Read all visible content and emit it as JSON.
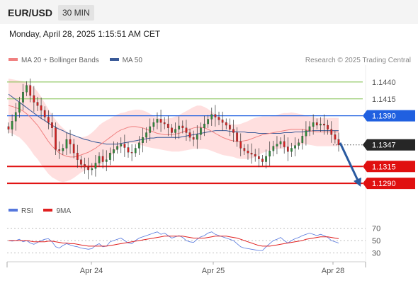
{
  "header": {
    "symbol": "EUR/USD",
    "timeframe": "30 MIN",
    "datetime": "Monday, April 28, 2025 1:15:51 AM CET"
  },
  "legend": {
    "bollinger": "MA 20 + Bollinger Bands",
    "ma50": "MA 50",
    "credit": "Research © 2025 Trading Central"
  },
  "indicator_legend": {
    "rsi": "RSI",
    "ma9": "9MA"
  },
  "colors": {
    "green_level": "#7fbf4a",
    "pivot_blue": "#2060e0",
    "support_red": "#e01010",
    "ma20": "#f08080",
    "band_fill": "#ffd4d4",
    "ma50": "#3a5a98",
    "candle_up": "#2e8b3a",
    "candle_down": "#d42020",
    "rsi": "#5577dd",
    "rsi_ma": "#e02020",
    "arrow": "#2a5aa0"
  },
  "chart_data": {
    "type": "candlestick",
    "title": "EUR/USD",
    "timeframe": "30 MIN",
    "ylim": [
      1.1265,
      1.1465
    ],
    "x_labels": [
      "Apr 24",
      "Apr 25",
      "Apr 28"
    ],
    "levels": [
      {
        "value": 1.144,
        "label": "1.1440",
        "kind": "resistance"
      },
      {
        "value": 1.1415,
        "label": "1.1415",
        "kind": "resistance"
      },
      {
        "value": 1.139,
        "label": "1.1390",
        "kind": "pivot"
      },
      {
        "value": 1.1347,
        "label": "1.1347",
        "kind": "last"
      },
      {
        "value": 1.1315,
        "label": "1.1315",
        "kind": "support"
      },
      {
        "value": 1.129,
        "label": "1.1290",
        "kind": "support"
      }
    ],
    "forecast_arrow": {
      "from": 1.135,
      "to": 1.1285
    },
    "price_path": [
      1.137,
      1.1382,
      1.1395,
      1.141,
      1.1425,
      1.1435,
      1.142,
      1.141,
      1.1405,
      1.1398,
      1.1388,
      1.138,
      1.1372,
      1.134,
      1.1338,
      1.1342,
      1.1355,
      1.1348,
      1.1335,
      1.1325,
      1.1318,
      1.1314,
      1.131,
      1.1312,
      1.132,
      1.133,
      1.1322,
      1.1325,
      1.1335,
      1.134,
      1.1345,
      1.1348,
      1.1343,
      1.1336,
      1.1335,
      1.1342,
      1.135,
      1.1358,
      1.1365,
      1.1374,
      1.138,
      1.1385,
      1.138,
      1.1378,
      1.1372,
      1.1365,
      1.137,
      1.1375,
      1.1372,
      1.1365,
      1.1358,
      1.1355,
      1.1362,
      1.1372,
      1.1378,
      1.1385,
      1.1392,
      1.1388,
      1.1384,
      1.138,
      1.1376,
      1.137,
      1.1365,
      1.1352,
      1.1342,
      1.1338,
      1.1335,
      1.1333,
      1.133,
      1.1326,
      1.1322,
      1.133,
      1.1338,
      1.1345,
      1.1348,
      1.1352,
      1.1344,
      1.1337,
      1.1342,
      1.1346,
      1.135,
      1.136,
      1.1368,
      1.1374,
      1.138,
      1.1376,
      1.1378,
      1.1376,
      1.137,
      1.1362,
      1.1355,
      1.1347
    ],
    "ma20": [
      1.1405,
      1.1404,
      1.1402,
      1.14,
      1.1397,
      1.1393,
      1.1388,
      1.1382,
      1.1376,
      1.1368,
      1.136,
      1.1352,
      1.1345,
      1.134,
      1.1335,
      1.1332,
      1.133,
      1.1329,
      1.1329,
      1.133,
      1.1332,
      1.1334,
      1.1336,
      1.1339,
      1.1342,
      1.1346,
      1.135,
      1.1354,
      1.1358,
      1.1362,
      1.1366,
      1.1369,
      1.1371,
      1.1373,
      1.1374,
      1.1374,
      1.1373,
      1.1372,
      1.137,
      1.1368,
      1.1366,
      1.1364,
      1.1363,
      1.1362,
      1.1362,
      1.1362,
      1.1363,
      1.1364,
      1.1366,
      1.1368,
      1.137,
      1.1372,
      1.1373,
      1.1373,
      1.1372,
      1.137,
      1.1367,
      1.1364,
      1.1361,
      1.1358,
      1.1356,
      1.1354,
      1.1353,
      1.1352,
      1.1352,
      1.1353,
      1.1354,
      1.1356,
      1.1358,
      1.136,
      1.1362,
      1.1363,
      1.1364,
      1.1365,
      1.1366,
      1.1367,
      1.1368,
      1.1369,
      1.137,
      1.137,
      1.137,
      1.137,
      1.1369,
      1.1368,
      1.1367,
      1.1366,
      1.1366,
      1.1366,
      1.1366,
      1.1366,
      1.1366,
      1.1366
    ],
    "band_width": [
      0.004,
      0.004,
      0.0041,
      0.0042,
      0.0044,
      0.0046,
      0.0048,
      0.005,
      0.005,
      0.005,
      0.0049,
      0.0048,
      0.0046,
      0.0044,
      0.0042,
      0.004,
      0.0037,
      0.0034,
      0.0031,
      0.0028,
      0.0026,
      0.0025,
      0.0025,
      0.0026,
      0.0028,
      0.003,
      0.003,
      0.0029,
      0.0028,
      0.0027,
      0.0026,
      0.0025,
      0.0024,
      0.0024,
      0.0024,
      0.0025,
      0.0026,
      0.0026,
      0.0026,
      0.0025,
      0.0024,
      0.0023,
      0.0023,
      0.0023,
      0.0024,
      0.0025,
      0.0026,
      0.0027,
      0.0028,
      0.0029,
      0.003,
      0.0031,
      0.0032,
      0.0032,
      0.0031,
      0.003,
      0.0029,
      0.0028,
      0.0027,
      0.0026,
      0.0025,
      0.0024,
      0.0024,
      0.0025,
      0.0026,
      0.0027,
      0.0028,
      0.0029,
      0.0029,
      0.0028,
      0.0027,
      0.0026,
      0.0025,
      0.0025,
      0.0025,
      0.0026,
      0.0026,
      0.0025,
      0.0025,
      0.0024,
      0.0023,
      0.0022,
      0.0021,
      0.0021,
      0.0021,
      0.0021,
      0.0021,
      0.0021,
      0.0021,
      0.0021,
      0.0021,
      0.0021
    ],
    "ma50": [
      1.1422,
      1.1418,
      1.1414,
      1.141,
      1.1406,
      1.1402,
      1.1398,
      1.1394,
      1.139,
      1.1386,
      1.1383,
      1.1379,
      1.1376,
      1.1373,
      1.137,
      1.1368,
      1.1365,
      1.1363,
      1.1361,
      1.1359,
      1.1357,
      1.1355,
      1.1354,
      1.1352,
      1.1351,
      1.135,
      1.1349,
      1.1348,
      1.1348,
      1.1348,
      1.1348,
      1.1349,
      1.135,
      1.1351,
      1.1352,
      1.1353,
      1.1354,
      1.1355,
      1.1356,
      1.1357,
      1.1357,
      1.1358,
      1.1358,
      1.1358,
      1.1358,
      1.1358,
      1.1358,
      1.1358,
      1.1359,
      1.136,
      1.1361,
      1.1362,
      1.1363,
      1.1364,
      1.1365,
      1.1366,
      1.1367,
      1.1368,
      1.1368,
      1.1368,
      1.1368,
      1.1367,
      1.1367,
      1.1366,
      1.1366,
      1.1366,
      1.1365,
      1.1365,
      1.1365,
      1.1364,
      1.1364,
      1.1364,
      1.1364,
      1.1364,
      1.1364,
      1.1364,
      1.1365,
      1.1365,
      1.1365,
      1.1366,
      1.1366,
      1.1366,
      1.1367,
      1.1367,
      1.1368,
      1.1368,
      1.1368,
      1.1368,
      1.1368,
      1.1368,
      1.1368,
      1.1368
    ],
    "rsi": {
      "ylim": [
        25,
        75
      ],
      "ticks": [
        70,
        50,
        30
      ],
      "values": [
        50,
        49,
        50,
        52,
        48,
        50,
        46,
        44,
        47,
        50,
        52,
        53,
        48,
        40,
        38,
        42,
        45,
        43,
        41,
        40,
        38,
        37,
        36,
        37,
        42,
        45,
        40,
        41,
        48,
        50,
        52,
        54,
        50,
        46,
        45,
        50,
        54,
        56,
        58,
        60,
        62,
        64,
        60,
        62,
        58,
        54,
        56,
        58,
        55,
        50,
        48,
        47,
        52,
        56,
        58,
        62,
        64,
        60,
        58,
        56,
        54,
        52,
        50,
        45,
        40,
        38,
        37,
        36,
        35,
        34,
        34,
        40,
        45,
        50,
        52,
        55,
        50,
        46,
        50,
        53,
        55,
        58,
        60,
        62,
        60,
        58,
        60,
        58,
        55,
        50,
        48,
        46
      ],
      "ma": [
        50,
        50,
        50,
        50,
        50,
        50,
        49,
        48,
        48,
        48,
        48,
        49,
        49,
        48,
        47,
        46,
        46,
        45,
        45,
        44,
        43,
        42,
        41,
        41,
        41,
        41,
        41,
        41,
        42,
        43,
        44,
        45,
        46,
        47,
        48,
        49,
        50,
        51,
        52,
        53,
        54,
        55,
        56,
        57,
        57,
        57,
        57,
        57,
        57,
        56,
        55,
        54,
        54,
        54,
        54,
        55,
        56,
        57,
        57,
        57,
        57,
        56,
        55,
        54,
        52,
        50,
        48,
        46,
        44,
        42,
        41,
        41,
        41,
        42,
        43,
        44,
        45,
        46,
        47,
        48,
        49,
        50,
        52,
        53,
        54,
        55,
        56,
        56,
        56,
        55,
        54,
        53
      ]
    }
  }
}
